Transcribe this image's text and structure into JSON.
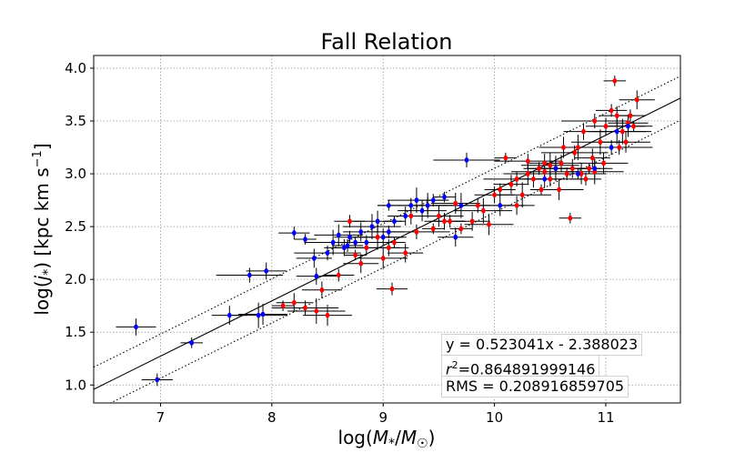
{
  "chart_data": {
    "type": "scatter",
    "title": "Fall Relation",
    "xlabel": "log(M*/M☉)",
    "ylabel": "log(j*) [kpc km s⁻¹]",
    "xlim": [
      6.4,
      11.67
    ],
    "ylim": [
      0.83,
      4.12
    ],
    "x_ticks": [
      7,
      8,
      9,
      10,
      11
    ],
    "y_ticks": [
      1.0,
      1.5,
      2.0,
      2.5,
      3.0,
      3.5,
      4.0
    ],
    "x_tick_labels": [
      "7",
      "8",
      "9",
      "10",
      "11"
    ],
    "y_tick_labels": [
      "1.0",
      "1.5",
      "2.0",
      "2.5",
      "3.0",
      "3.5",
      "4.0"
    ],
    "grid": true,
    "fit_line": {
      "slope": 0.523041,
      "intercept": -2.388023,
      "color": "#000000"
    },
    "rms_offset": 0.208916859705,
    "annotations": {
      "equation": "y = 0.523041x - 2.388023",
      "r2_value": "0.864891999146",
      "rms": "RMS = 0.208916859705"
    },
    "series": [
      {
        "name": "red",
        "color": "#ff0000",
        "points": [
          [
            8.1,
            1.75
          ],
          [
            8.2,
            1.78
          ],
          [
            8.3,
            1.73
          ],
          [
            8.4,
            1.7
          ],
          [
            8.5,
            1.66
          ],
          [
            8.45,
            1.9
          ],
          [
            8.6,
            2.04
          ],
          [
            8.75,
            2.23
          ],
          [
            8.8,
            2.15
          ],
          [
            8.85,
            2.3
          ],
          [
            8.95,
            2.4
          ],
          [
            9.0,
            2.2
          ],
          [
            9.05,
            2.3
          ],
          [
            9.08,
            1.91
          ],
          [
            9.1,
            2.35
          ],
          [
            9.2,
            2.25
          ],
          [
            9.3,
            2.45
          ],
          [
            9.4,
            2.7
          ],
          [
            9.5,
            2.6
          ],
          [
            9.55,
            2.55
          ],
          [
            9.6,
            2.55
          ],
          [
            9.7,
            2.48
          ],
          [
            9.8,
            2.55
          ],
          [
            9.85,
            2.7
          ],
          [
            9.9,
            2.65
          ],
          [
            9.95,
            2.52
          ],
          [
            10.0,
            2.8
          ],
          [
            10.05,
            2.85
          ],
          [
            10.1,
            3.15
          ],
          [
            10.15,
            2.9
          ],
          [
            10.2,
            2.95
          ],
          [
            10.25,
            2.8
          ],
          [
            10.3,
            3.0
          ],
          [
            10.35,
            2.95
          ],
          [
            10.4,
            3.05
          ],
          [
            10.42,
            2.85
          ],
          [
            10.45,
            3.1
          ],
          [
            10.5,
            2.95
          ],
          [
            10.55,
            3.05
          ],
          [
            10.58,
            2.85
          ],
          [
            10.6,
            3.1
          ],
          [
            10.65,
            3.0
          ],
          [
            10.68,
            2.58
          ],
          [
            10.7,
            3.05
          ],
          [
            10.72,
            3.2
          ],
          [
            10.75,
            3.25
          ],
          [
            10.78,
            3.0
          ],
          [
            10.8,
            3.4
          ],
          [
            10.82,
            2.95
          ],
          [
            10.85,
            3.05
          ],
          [
            10.88,
            3.15
          ],
          [
            10.9,
            3.5
          ],
          [
            10.95,
            3.3
          ],
          [
            10.98,
            3.1
          ],
          [
            11.0,
            3.45
          ],
          [
            11.05,
            3.6
          ],
          [
            11.08,
            3.88
          ],
          [
            11.1,
            3.55
          ],
          [
            11.12,
            3.25
          ],
          [
            11.15,
            3.4
          ],
          [
            11.18,
            3.3
          ],
          [
            11.2,
            3.48
          ],
          [
            11.22,
            3.55
          ],
          [
            11.25,
            3.45
          ],
          [
            11.28,
            3.7
          ],
          [
            10.3,
            3.12
          ],
          [
            10.5,
            3.08
          ],
          [
            10.62,
            3.25
          ],
          [
            9.25,
            2.6
          ],
          [
            8.7,
            2.55
          ],
          [
            9.45,
            2.48
          ],
          [
            10.2,
            2.7
          ],
          [
            10.45,
            3.02
          ],
          [
            10.9,
            3.02
          ],
          [
            9.65,
            2.72
          ]
        ]
      },
      {
        "name": "blue",
        "color": "#0000ff",
        "points": [
          [
            6.78,
            1.55
          ],
          [
            6.97,
            1.05
          ],
          [
            7.28,
            1.4
          ],
          [
            7.62,
            1.66
          ],
          [
            7.8,
            2.04
          ],
          [
            7.88,
            1.66
          ],
          [
            7.92,
            1.67
          ],
          [
            7.95,
            2.08
          ],
          [
            8.2,
            2.44
          ],
          [
            8.3,
            2.38
          ],
          [
            8.38,
            2.2
          ],
          [
            8.5,
            2.25
          ],
          [
            8.55,
            2.35
          ],
          [
            8.6,
            2.42
          ],
          [
            8.65,
            2.3
          ],
          [
            8.7,
            2.4
          ],
          [
            8.75,
            2.35
          ],
          [
            8.8,
            2.45
          ],
          [
            8.85,
            2.35
          ],
          [
            8.9,
            2.5
          ],
          [
            8.95,
            2.55
          ],
          [
            9.0,
            2.4
          ],
          [
            9.05,
            2.45
          ],
          [
            9.1,
            2.55
          ],
          [
            9.2,
            2.6
          ],
          [
            9.25,
            2.7
          ],
          [
            9.3,
            2.75
          ],
          [
            9.35,
            2.65
          ],
          [
            9.4,
            2.7
          ],
          [
            9.45,
            2.75
          ],
          [
            9.55,
            2.78
          ],
          [
            9.65,
            2.4
          ],
          [
            9.75,
            3.13
          ],
          [
            9.7,
            2.7
          ],
          [
            10.05,
            2.7
          ],
          [
            10.45,
            2.95
          ],
          [
            10.55,
            3.05
          ],
          [
            10.75,
            3.0
          ],
          [
            10.9,
            3.05
          ],
          [
            11.05,
            3.25
          ],
          [
            11.1,
            3.4
          ],
          [
            11.2,
            3.45
          ],
          [
            8.4,
            2.03
          ],
          [
            8.68,
            2.32
          ],
          [
            9.05,
            2.7
          ]
        ]
      }
    ]
  }
}
